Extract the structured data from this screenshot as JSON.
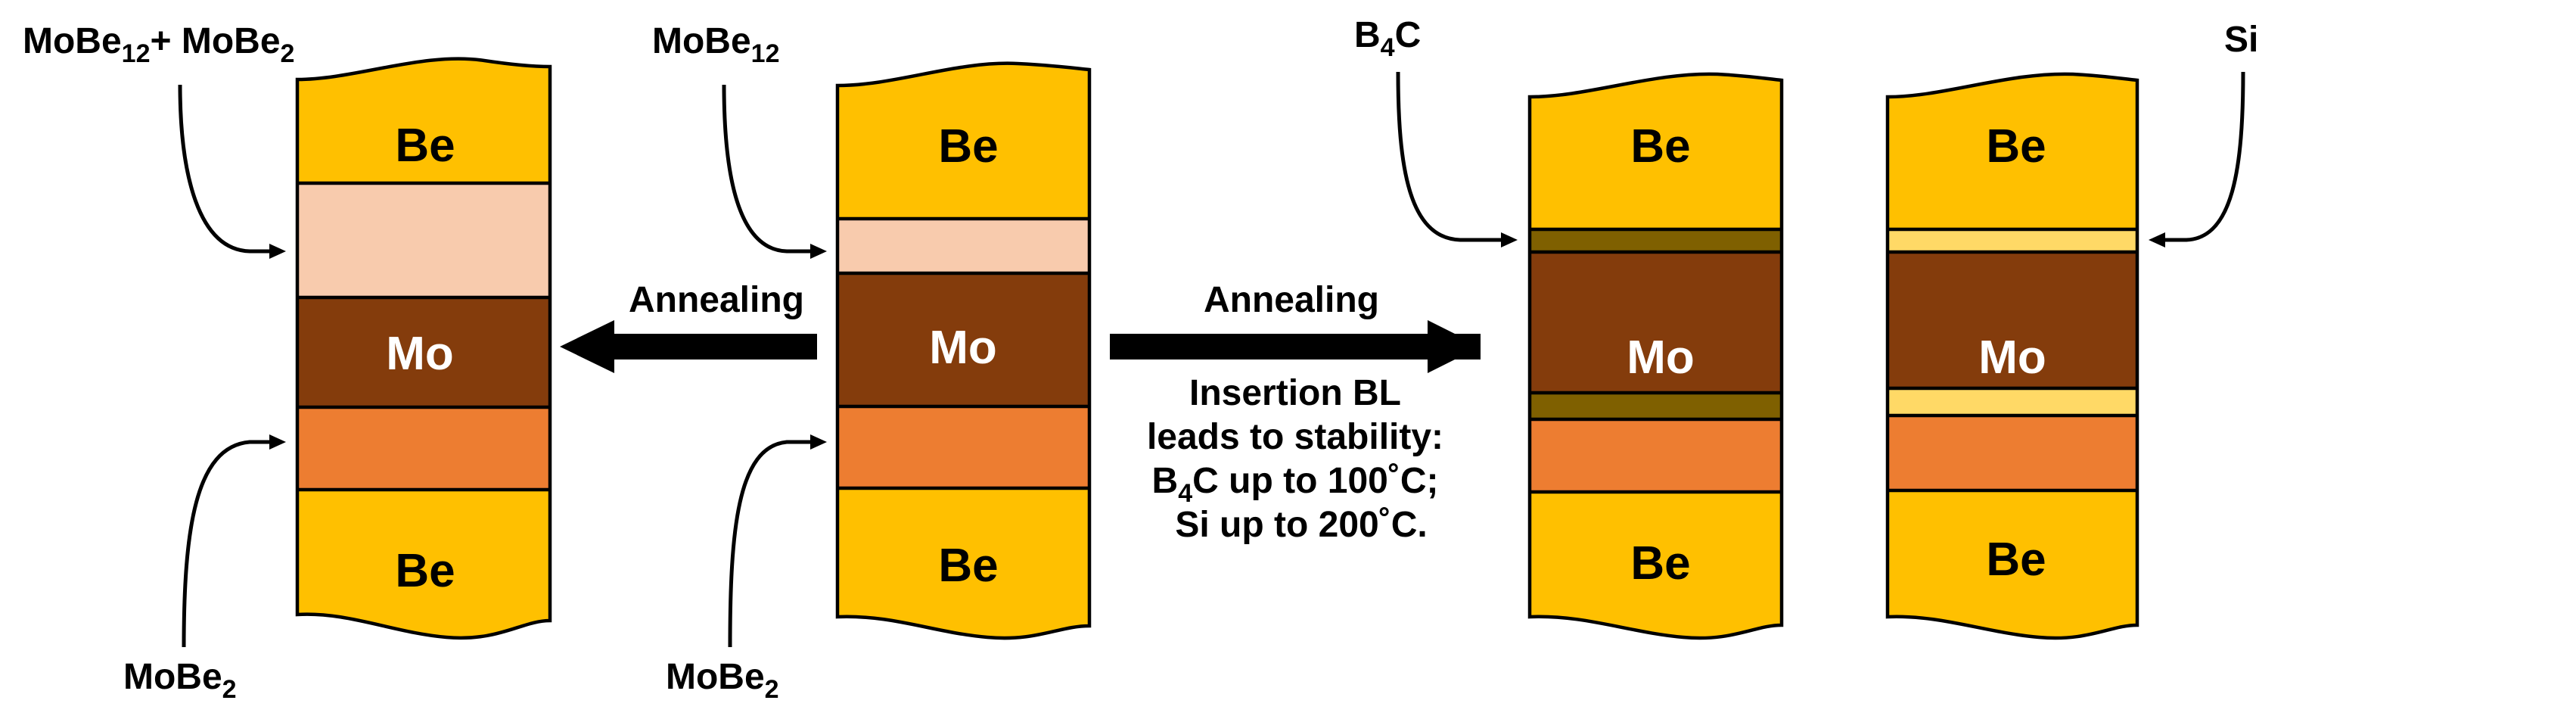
{
  "colors": {
    "be": "#FFC000",
    "mo": "#843C0C",
    "mobe12_mobe2": "#F8CBAD",
    "mobe2": "#ED7D31",
    "b4c": "#7F6000",
    "si": "#FFD966"
  },
  "labels": {
    "left_top": {
      "main": "MoBe",
      "sub": "12",
      "mid": "+ MoBe",
      "sub2": "2"
    },
    "left_bottom": {
      "main": "MoBe",
      "sub": "2"
    },
    "center_top": {
      "main": "MoBe",
      "sub": "12"
    },
    "center_bottom": {
      "main": "MoBe",
      "sub": "2"
    },
    "b4c_top": {
      "main": "B",
      "sub": "4",
      "tail": "C"
    },
    "si_top": {
      "main": "Si"
    }
  },
  "layers": {
    "be": "Be",
    "mo": "Mo"
  },
  "arrows": {
    "left": "Annealing",
    "right": "Annealing"
  },
  "caption": {
    "line1": "Insertion BL",
    "line2": "leads to stability:",
    "line3_pre": "B",
    "line3_sub": "4",
    "line3_post": "C up to 100˚C;",
    "line4": "Si up to 200˚C."
  }
}
